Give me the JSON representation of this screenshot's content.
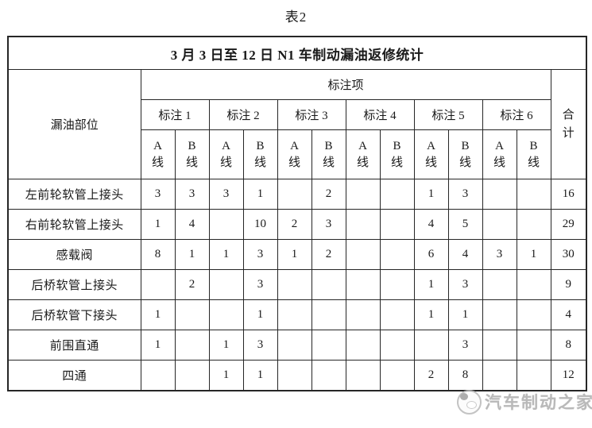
{
  "caption": "表2",
  "table": {
    "title": "3 月 3 日至 12 日 N1 车制动漏油返修统计",
    "header": {
      "leak_location": "漏油部位",
      "annotation_group": "标注项",
      "annotations": [
        "标注 1",
        "标注 2",
        "标注 3",
        "标注 4",
        "标注 5",
        "标注 6"
      ],
      "sub_columns": [
        [
          "A",
          "线"
        ],
        [
          "B",
          "线"
        ]
      ],
      "total_label": "合计"
    },
    "rows": [
      {
        "label": "左前轮软管上接头",
        "values": [
          "3",
          "3",
          "3",
          "1",
          "",
          "2",
          "",
          "",
          "1",
          "3",
          "",
          ""
        ],
        "total": "16"
      },
      {
        "label": "右前轮软管上接头",
        "values": [
          "1",
          "4",
          "",
          "10",
          "2",
          "3",
          "",
          "",
          "4",
          "5",
          "",
          ""
        ],
        "total": "29"
      },
      {
        "label": "感载阀",
        "values": [
          "8",
          "1",
          "1",
          "3",
          "1",
          "2",
          "",
          "",
          "6",
          "4",
          "3",
          "1"
        ],
        "total": "30"
      },
      {
        "label": "后桥软管上接头",
        "values": [
          "",
          "2",
          "",
          "3",
          "",
          "",
          "",
          "",
          "1",
          "3",
          "",
          ""
        ],
        "total": "9"
      },
      {
        "label": "后桥软管下接头",
        "values": [
          "1",
          "",
          "",
          "1",
          "",
          "",
          "",
          "",
          "1",
          "1",
          "",
          ""
        ],
        "total": "4"
      },
      {
        "label": "前围直通",
        "values": [
          "1",
          "",
          "1",
          "3",
          "",
          "",
          "",
          "",
          "",
          "3",
          "",
          ""
        ],
        "total": "8"
      },
      {
        "label": "四通",
        "values": [
          "",
          "",
          "1",
          "1",
          "",
          "",
          "",
          "",
          "2",
          "8",
          "",
          ""
        ],
        "total": "12"
      }
    ]
  },
  "watermark": {
    "text": "汽车制动之家"
  },
  "colors": {
    "border": "#262626",
    "text": "#1a1a1a",
    "watermark": "#adadad",
    "background": "#ffffff"
  }
}
